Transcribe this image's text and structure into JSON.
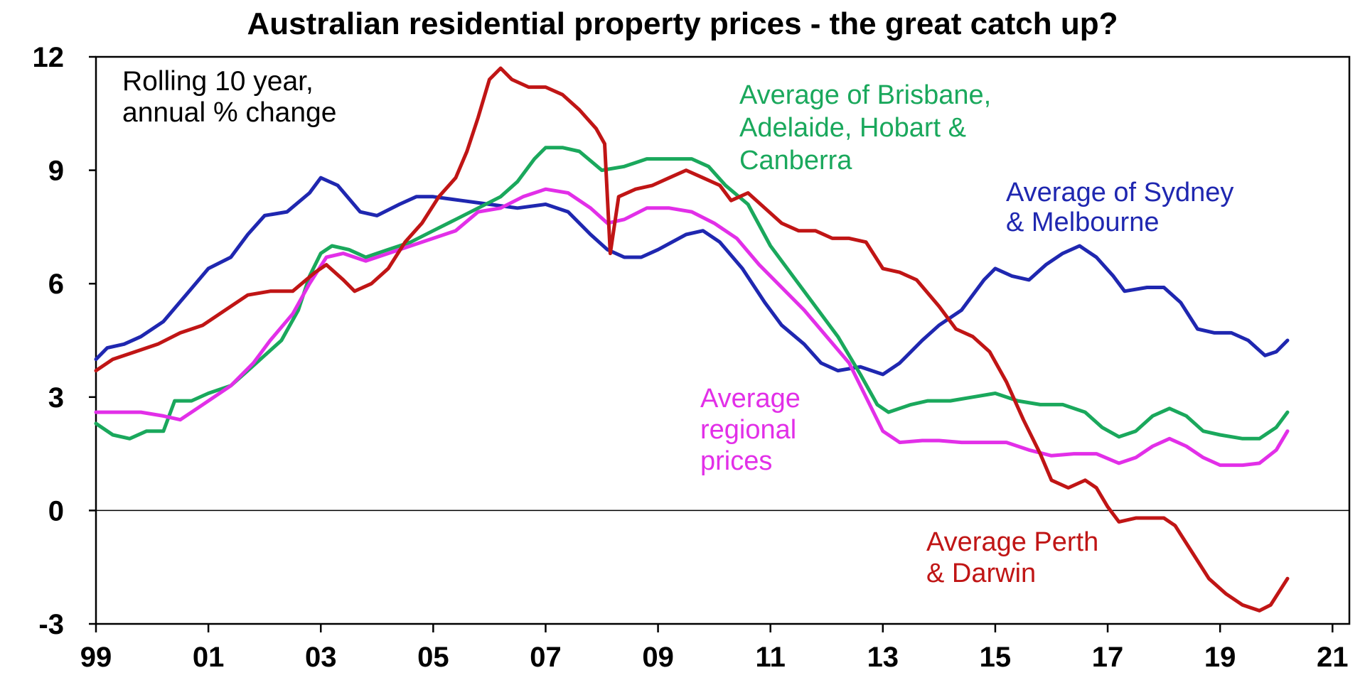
{
  "chart_data": {
    "type": "line",
    "title": "Australian residential property prices - the great catch up?",
    "note_lines": [
      "Rolling 10 year,",
      "annual % change"
    ],
    "xlabel": "",
    "ylabel": "",
    "x_range": [
      1999,
      2021.3
    ],
    "ylim": [
      -3,
      12
    ],
    "y_ticks": [
      12,
      9,
      6,
      3,
      0,
      -3
    ],
    "y_tick_labels": [
      "12",
      "9",
      "6",
      "3",
      "0",
      "-3"
    ],
    "x_ticks": [
      1999,
      2001,
      2003,
      2005,
      2007,
      2009,
      2011,
      2013,
      2015,
      2017,
      2019,
      2021
    ],
    "x_tick_labels": [
      "99",
      "01",
      "03",
      "05",
      "07",
      "09",
      "11",
      "13",
      "15",
      "17",
      "19",
      "21"
    ],
    "grid": false,
    "zero_line": true,
    "legend": "none",
    "series": [
      {
        "name": "Average of Sydney & Melbourne",
        "label_lines": [
          "Average of Sydney",
          "& Melbourne"
        ],
        "color": "#1f27b0",
        "points": [
          [
            1999.0,
            4.0
          ],
          [
            1999.2,
            4.3
          ],
          [
            1999.5,
            4.4
          ],
          [
            1999.8,
            4.6
          ],
          [
            2000.2,
            5.0
          ],
          [
            2000.6,
            5.7
          ],
          [
            2001.0,
            6.4
          ],
          [
            2001.4,
            6.7
          ],
          [
            2001.7,
            7.3
          ],
          [
            2002.0,
            7.8
          ],
          [
            2002.4,
            7.9
          ],
          [
            2002.8,
            8.4
          ],
          [
            2003.0,
            8.8
          ],
          [
            2003.3,
            8.6
          ],
          [
            2003.7,
            7.9
          ],
          [
            2004.0,
            7.8
          ],
          [
            2004.4,
            8.1
          ],
          [
            2004.7,
            8.3
          ],
          [
            2005.0,
            8.3
          ],
          [
            2005.5,
            8.2
          ],
          [
            2006.0,
            8.1
          ],
          [
            2006.5,
            8.0
          ],
          [
            2007.0,
            8.1
          ],
          [
            2007.4,
            7.9
          ],
          [
            2007.8,
            7.3
          ],
          [
            2008.1,
            6.9
          ],
          [
            2008.4,
            6.7
          ],
          [
            2008.7,
            6.7
          ],
          [
            2009.0,
            6.9
          ],
          [
            2009.5,
            7.3
          ],
          [
            2009.8,
            7.4
          ],
          [
            2010.1,
            7.1
          ],
          [
            2010.5,
            6.4
          ],
          [
            2010.9,
            5.5
          ],
          [
            2011.2,
            4.9
          ],
          [
            2011.6,
            4.4
          ],
          [
            2011.9,
            3.9
          ],
          [
            2012.2,
            3.7
          ],
          [
            2012.6,
            3.8
          ],
          [
            2013.0,
            3.6
          ],
          [
            2013.3,
            3.9
          ],
          [
            2013.7,
            4.5
          ],
          [
            2014.0,
            4.9
          ],
          [
            2014.4,
            5.3
          ],
          [
            2014.8,
            6.1
          ],
          [
            2015.0,
            6.4
          ],
          [
            2015.3,
            6.2
          ],
          [
            2015.6,
            6.1
          ],
          [
            2015.9,
            6.5
          ],
          [
            2016.2,
            6.8
          ],
          [
            2016.5,
            7.0
          ],
          [
            2016.8,
            6.7
          ],
          [
            2017.1,
            6.2
          ],
          [
            2017.3,
            5.8
          ],
          [
            2017.7,
            5.9
          ],
          [
            2018.0,
            5.9
          ],
          [
            2018.3,
            5.5
          ],
          [
            2018.6,
            4.8
          ],
          [
            2018.9,
            4.7
          ],
          [
            2019.2,
            4.7
          ],
          [
            2019.5,
            4.5
          ],
          [
            2019.8,
            4.1
          ],
          [
            2020.0,
            4.2
          ],
          [
            2020.2,
            4.5
          ]
        ]
      },
      {
        "name": "Average of Brisbane, Adelaide, Hobart & Canberra",
        "label_lines": [
          "Average of Brisbane,",
          "Adelaide, Hobart &",
          "Canberra"
        ],
        "color": "#1aa85c",
        "points": [
          [
            1999.0,
            2.3
          ],
          [
            1999.3,
            2.0
          ],
          [
            1999.6,
            1.9
          ],
          [
            1999.9,
            2.1
          ],
          [
            2000.2,
            2.1
          ],
          [
            2000.4,
            2.9
          ],
          [
            2000.7,
            2.9
          ],
          [
            2001.0,
            3.1
          ],
          [
            2001.4,
            3.3
          ],
          [
            2001.7,
            3.7
          ],
          [
            2002.0,
            4.1
          ],
          [
            2002.3,
            4.5
          ],
          [
            2002.6,
            5.3
          ],
          [
            2002.8,
            6.2
          ],
          [
            2003.0,
            6.8
          ],
          [
            2003.2,
            7.0
          ],
          [
            2003.5,
            6.9
          ],
          [
            2003.8,
            6.7
          ],
          [
            2004.2,
            6.9
          ],
          [
            2004.6,
            7.1
          ],
          [
            2005.0,
            7.4
          ],
          [
            2005.4,
            7.7
          ],
          [
            2005.8,
            8.0
          ],
          [
            2006.2,
            8.3
          ],
          [
            2006.5,
            8.7
          ],
          [
            2006.8,
            9.3
          ],
          [
            2007.0,
            9.6
          ],
          [
            2007.3,
            9.6
          ],
          [
            2007.6,
            9.5
          ],
          [
            2008.0,
            9.0
          ],
          [
            2008.4,
            9.1
          ],
          [
            2008.8,
            9.3
          ],
          [
            2009.2,
            9.3
          ],
          [
            2009.6,
            9.3
          ],
          [
            2009.9,
            9.1
          ],
          [
            2010.2,
            8.6
          ],
          [
            2010.6,
            8.1
          ],
          [
            2011.0,
            7.0
          ],
          [
            2011.4,
            6.2
          ],
          [
            2011.8,
            5.4
          ],
          [
            2012.2,
            4.6
          ],
          [
            2012.6,
            3.6
          ],
          [
            2012.9,
            2.8
          ],
          [
            2013.1,
            2.6
          ],
          [
            2013.5,
            2.8
          ],
          [
            2013.8,
            2.9
          ],
          [
            2014.2,
            2.9
          ],
          [
            2014.6,
            3.0
          ],
          [
            2015.0,
            3.1
          ],
          [
            2015.4,
            2.9
          ],
          [
            2015.8,
            2.8
          ],
          [
            2016.2,
            2.8
          ],
          [
            2016.6,
            2.6
          ],
          [
            2016.9,
            2.2
          ],
          [
            2017.2,
            1.95
          ],
          [
            2017.5,
            2.1
          ],
          [
            2017.8,
            2.5
          ],
          [
            2018.1,
            2.7
          ],
          [
            2018.4,
            2.5
          ],
          [
            2018.7,
            2.1
          ],
          [
            2019.0,
            2.0
          ],
          [
            2019.4,
            1.9
          ],
          [
            2019.7,
            1.9
          ],
          [
            2020.0,
            2.2
          ],
          [
            2020.2,
            2.6
          ]
        ]
      },
      {
        "name": "Average regional prices",
        "label_lines": [
          "Average",
          "regional",
          "prices"
        ],
        "color": "#e22fe8",
        "points": [
          [
            1999.0,
            2.6
          ],
          [
            1999.4,
            2.6
          ],
          [
            1999.8,
            2.6
          ],
          [
            2000.2,
            2.5
          ],
          [
            2000.5,
            2.4
          ],
          [
            2000.8,
            2.7
          ],
          [
            2001.1,
            3.0
          ],
          [
            2001.4,
            3.3
          ],
          [
            2001.8,
            3.9
          ],
          [
            2002.1,
            4.5
          ],
          [
            2002.5,
            5.2
          ],
          [
            2002.8,
            6.0
          ],
          [
            2003.1,
            6.7
          ],
          [
            2003.4,
            6.8
          ],
          [
            2003.8,
            6.6
          ],
          [
            2004.2,
            6.8
          ],
          [
            2004.6,
            7.0
          ],
          [
            2005.0,
            7.2
          ],
          [
            2005.4,
            7.4
          ],
          [
            2005.8,
            7.9
          ],
          [
            2006.2,
            8.0
          ],
          [
            2006.6,
            8.3
          ],
          [
            2007.0,
            8.5
          ],
          [
            2007.4,
            8.4
          ],
          [
            2007.8,
            8.0
          ],
          [
            2008.1,
            7.6
          ],
          [
            2008.4,
            7.7
          ],
          [
            2008.8,
            8.0
          ],
          [
            2009.2,
            8.0
          ],
          [
            2009.6,
            7.9
          ],
          [
            2010.0,
            7.6
          ],
          [
            2010.4,
            7.2
          ],
          [
            2010.8,
            6.5
          ],
          [
            2011.2,
            5.9
          ],
          [
            2011.6,
            5.3
          ],
          [
            2012.0,
            4.6
          ],
          [
            2012.4,
            3.9
          ],
          [
            2012.7,
            3.0
          ],
          [
            2013.0,
            2.1
          ],
          [
            2013.3,
            1.8
          ],
          [
            2013.7,
            1.85
          ],
          [
            2014.0,
            1.85
          ],
          [
            2014.4,
            1.8
          ],
          [
            2014.8,
            1.8
          ],
          [
            2015.2,
            1.8
          ],
          [
            2015.6,
            1.6
          ],
          [
            2016.0,
            1.45
          ],
          [
            2016.4,
            1.5
          ],
          [
            2016.8,
            1.5
          ],
          [
            2017.2,
            1.25
          ],
          [
            2017.5,
            1.4
          ],
          [
            2017.8,
            1.7
          ],
          [
            2018.1,
            1.9
          ],
          [
            2018.4,
            1.7
          ],
          [
            2018.7,
            1.4
          ],
          [
            2019.0,
            1.2
          ],
          [
            2019.4,
            1.2
          ],
          [
            2019.7,
            1.25
          ],
          [
            2020.0,
            1.6
          ],
          [
            2020.2,
            2.1
          ]
        ]
      },
      {
        "name": "Average Perth & Darwin",
        "label_lines": [
          "Average Perth",
          "& Darwin"
        ],
        "color": "#c01515",
        "points": [
          [
            1999.0,
            3.7
          ],
          [
            1999.3,
            4.0
          ],
          [
            1999.7,
            4.2
          ],
          [
            2000.1,
            4.4
          ],
          [
            2000.5,
            4.7
          ],
          [
            2000.9,
            4.9
          ],
          [
            2001.3,
            5.3
          ],
          [
            2001.7,
            5.7
          ],
          [
            2002.1,
            5.8
          ],
          [
            2002.5,
            5.8
          ],
          [
            2002.9,
            6.3
          ],
          [
            2003.1,
            6.5
          ],
          [
            2003.4,
            6.1
          ],
          [
            2003.6,
            5.8
          ],
          [
            2003.9,
            6.0
          ],
          [
            2004.2,
            6.4
          ],
          [
            2004.5,
            7.1
          ],
          [
            2004.8,
            7.6
          ],
          [
            2005.1,
            8.3
          ],
          [
            2005.4,
            8.8
          ],
          [
            2005.6,
            9.5
          ],
          [
            2005.8,
            10.4
          ],
          [
            2006.0,
            11.4
          ],
          [
            2006.2,
            11.7
          ],
          [
            2006.4,
            11.4
          ],
          [
            2006.7,
            11.2
          ],
          [
            2007.0,
            11.2
          ],
          [
            2007.3,
            11.0
          ],
          [
            2007.6,
            10.6
          ],
          [
            2007.9,
            10.1
          ],
          [
            2008.05,
            9.7
          ],
          [
            2008.15,
            6.8
          ],
          [
            2008.3,
            8.3
          ],
          [
            2008.6,
            8.5
          ],
          [
            2008.9,
            8.6
          ],
          [
            2009.2,
            8.8
          ],
          [
            2009.5,
            9.0
          ],
          [
            2009.8,
            8.8
          ],
          [
            2010.1,
            8.6
          ],
          [
            2010.3,
            8.2
          ],
          [
            2010.6,
            8.4
          ],
          [
            2010.9,
            8.0
          ],
          [
            2011.2,
            7.6
          ],
          [
            2011.5,
            7.4
          ],
          [
            2011.8,
            7.4
          ],
          [
            2012.1,
            7.2
          ],
          [
            2012.4,
            7.2
          ],
          [
            2012.7,
            7.1
          ],
          [
            2013.0,
            6.4
          ],
          [
            2013.3,
            6.3
          ],
          [
            2013.6,
            6.1
          ],
          [
            2014.0,
            5.4
          ],
          [
            2014.3,
            4.8
          ],
          [
            2014.6,
            4.6
          ],
          [
            2014.9,
            4.2
          ],
          [
            2015.2,
            3.4
          ],
          [
            2015.5,
            2.4
          ],
          [
            2015.8,
            1.5
          ],
          [
            2016.0,
            0.8
          ],
          [
            2016.3,
            0.6
          ],
          [
            2016.6,
            0.8
          ],
          [
            2016.8,
            0.6
          ],
          [
            2017.0,
            0.1
          ],
          [
            2017.2,
            -0.3
          ],
          [
            2017.5,
            -0.2
          ],
          [
            2017.8,
            -0.2
          ],
          [
            2018.0,
            -0.2
          ],
          [
            2018.2,
            -0.4
          ],
          [
            2018.5,
            -1.1
          ],
          [
            2018.8,
            -1.8
          ],
          [
            2019.1,
            -2.2
          ],
          [
            2019.4,
            -2.5
          ],
          [
            2019.7,
            -2.65
          ],
          [
            2019.9,
            -2.5
          ],
          [
            2020.2,
            -1.8
          ]
        ]
      }
    ]
  }
}
